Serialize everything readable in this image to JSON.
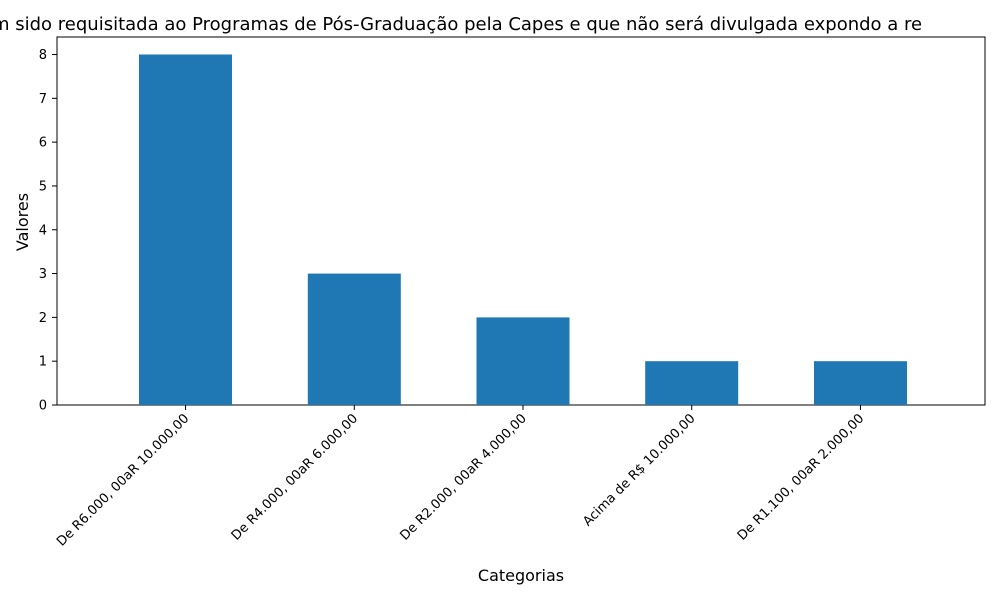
{
  "chart_data": {
    "type": "bar",
    "title": "m sido requisitada ao Programas de Pós-Graduação pela Capes e que não será divulgada expondo a re",
    "xlabel": "Categorias",
    "ylabel": "Valores",
    "categories": [
      "De R6.000, 00aR 10.000,00",
      "De R4.000, 00aR 6.000,00",
      "De R2.000, 00aR 4.000,00",
      "Acima de R$ 10.000,00",
      "De R1.100, 00aR 2.000,00"
    ],
    "values": [
      8,
      3,
      2,
      1,
      1
    ],
    "ylim": [
      0,
      8.4
    ],
    "yticks": [
      0,
      1,
      2,
      3,
      4,
      5,
      6,
      7,
      8
    ],
    "grid": false,
    "bar_color": "#1f77b4"
  }
}
